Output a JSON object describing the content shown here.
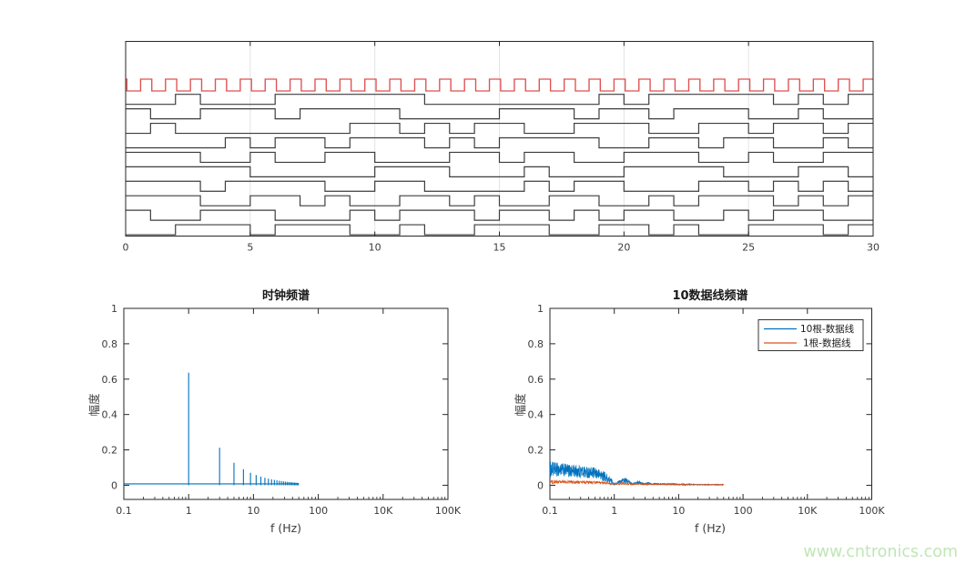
{
  "figure": {
    "background": "#ffffff",
    "watermark": {
      "text": "www.cntronics.com",
      "color": "#bfe6b6"
    }
  },
  "chart_data": [
    {
      "type": "digital-waveform",
      "panel": "top",
      "title": "",
      "xlim": [
        0,
        30
      ],
      "x_ticks": [
        0,
        5,
        10,
        15,
        20,
        25,
        30
      ],
      "x_tick_labels": [
        "0",
        "5",
        "10",
        "15",
        "20",
        "25",
        "30"
      ],
      "grid": "vertical-at-major-ticks",
      "grid_color": "#e4e4e4",
      "axis_color": "#262626",
      "clock": {
        "name": "clock-signal",
        "color": "#e04f4f",
        "period": 1,
        "duty_high": 0.45,
        "rise_offset": 0.6,
        "fall_offset": 1.05,
        "initial_high_until": 0.05,
        "cycles": 30
      },
      "data_lines": {
        "color": "#3d3d3d",
        "count": 10,
        "bit_period": 1,
        "bits": [
          [
            0,
            0,
            1,
            0,
            0,
            0,
            1,
            1,
            1,
            1,
            1,
            1,
            0,
            0,
            0,
            0,
            0,
            0,
            0,
            1,
            0,
            1,
            1,
            1,
            1,
            1,
            0,
            1,
            0,
            1
          ],
          [
            1,
            0,
            0,
            1,
            1,
            1,
            0,
            1,
            1,
            1,
            1,
            0,
            0,
            0,
            0,
            1,
            1,
            1,
            0,
            1,
            1,
            0,
            1,
            1,
            1,
            0,
            0,
            1,
            0,
            0
          ],
          [
            0,
            1,
            0,
            0,
            0,
            0,
            0,
            0,
            0,
            1,
            1,
            0,
            1,
            0,
            1,
            1,
            0,
            0,
            1,
            1,
            1,
            0,
            0,
            1,
            1,
            0,
            1,
            1,
            0,
            1
          ],
          [
            0,
            0,
            0,
            0,
            1,
            0,
            1,
            1,
            0,
            1,
            1,
            1,
            0,
            1,
            0,
            1,
            1,
            1,
            1,
            0,
            0,
            1,
            1,
            0,
            1,
            1,
            0,
            0,
            1,
            0
          ],
          [
            1,
            1,
            1,
            0,
            0,
            1,
            0,
            0,
            1,
            1,
            0,
            0,
            0,
            1,
            1,
            0,
            1,
            1,
            0,
            0,
            1,
            1,
            1,
            0,
            0,
            1,
            0,
            0,
            1,
            1
          ],
          [
            1,
            1,
            1,
            1,
            1,
            0,
            0,
            0,
            0,
            0,
            1,
            1,
            1,
            0,
            0,
            0,
            1,
            0,
            0,
            0,
            1,
            1,
            1,
            1,
            0,
            0,
            0,
            1,
            1,
            0
          ],
          [
            1,
            1,
            1,
            0,
            1,
            1,
            1,
            1,
            0,
            0,
            1,
            1,
            0,
            0,
            0,
            0,
            1,
            0,
            1,
            1,
            0,
            0,
            0,
            1,
            1,
            0,
            1,
            0,
            1,
            0
          ],
          [
            1,
            1,
            1,
            0,
            0,
            1,
            1,
            0,
            1,
            0,
            0,
            1,
            1,
            0,
            1,
            0,
            0,
            1,
            1,
            0,
            0,
            1,
            0,
            1,
            1,
            1,
            0,
            1,
            0,
            1
          ],
          [
            1,
            0,
            0,
            1,
            1,
            1,
            0,
            0,
            0,
            1,
            0,
            1,
            1,
            1,
            0,
            1,
            1,
            0,
            1,
            0,
            1,
            1,
            0,
            0,
            1,
            0,
            1,
            1,
            0,
            0
          ],
          [
            0,
            0,
            1,
            1,
            1,
            0,
            1,
            1,
            1,
            0,
            0,
            1,
            0,
            0,
            1,
            1,
            1,
            0,
            0,
            1,
            1,
            0,
            1,
            0,
            0,
            1,
            1,
            1,
            0,
            1
          ]
        ]
      }
    },
    {
      "type": "stem",
      "panel": "bottom-left",
      "title": "时钟频谱",
      "xlabel": "f (Hz)",
      "ylabel": "幅度",
      "x_scale": "log",
      "x_tick_labels": [
        "0.1",
        "1",
        "10",
        "100",
        "10K",
        "100K"
      ],
      "y_ticks": [
        0,
        0.2,
        0.4,
        0.6,
        0.8,
        1
      ],
      "y_tick_labels": [
        "0",
        "0.2",
        "0.4",
        "0.6",
        "0.8",
        "1"
      ],
      "ylim": [
        -0.08,
        1
      ],
      "color": "#0072BD",
      "baseline_level": 0.008,
      "baseline_range_hz": [
        0.1,
        50
      ],
      "harmonics_hz_amplitude": [
        [
          1,
          0.6366
        ],
        [
          3,
          0.2122
        ],
        [
          5,
          0.1273
        ],
        [
          7,
          0.0909
        ],
        [
          9,
          0.0707
        ],
        [
          11,
          0.0579
        ],
        [
          13,
          0.049
        ],
        [
          15,
          0.0424
        ],
        [
          17,
          0.0374
        ],
        [
          19,
          0.0335
        ],
        [
          21,
          0.0303
        ],
        [
          23,
          0.0277
        ],
        [
          25,
          0.0255
        ],
        [
          27,
          0.0236
        ],
        [
          29,
          0.022
        ],
        [
          31,
          0.0205
        ],
        [
          33,
          0.0193
        ],
        [
          35,
          0.0182
        ],
        [
          37,
          0.0172
        ],
        [
          39,
          0.0163
        ],
        [
          41,
          0.0155
        ],
        [
          43,
          0.0148
        ],
        [
          45,
          0.0141
        ],
        [
          47,
          0.0135
        ],
        [
          49,
          0.013
        ]
      ]
    },
    {
      "type": "line",
      "panel": "bottom-right",
      "title": "10数据线频谱",
      "xlabel": "f (Hz)",
      "ylabel": "幅度",
      "x_scale": "log",
      "x_tick_labels": [
        "0.1",
        "1",
        "10",
        "100",
        "10K",
        "100K"
      ],
      "y_ticks": [
        0,
        0.2,
        0.4,
        0.6,
        0.8,
        1
      ],
      "y_tick_labels": [
        "0",
        "0.2",
        "0.4",
        "0.6",
        "0.8",
        "1"
      ],
      "ylim": [
        -0.08,
        1
      ],
      "legend": {
        "position": "top-right",
        "entries": [
          {
            "label": "10根-数据线",
            "color": "#0072BD"
          },
          {
            "label": "1根-数据线",
            "color": "#D95319"
          }
        ]
      },
      "series": [
        {
          "name": "10根-数据线",
          "color": "#0072BD",
          "f_range_hz": [
            0.1,
            50
          ],
          "noise_band_f_lo_hi": [
            [
              0.1,
              0.045,
              0.135
            ],
            [
              0.15,
              0.05,
              0.125
            ],
            [
              0.2,
              0.045,
              0.12
            ],
            [
              0.3,
              0.04,
              0.115
            ],
            [
              0.4,
              0.04,
              0.105
            ],
            [
              0.5,
              0.035,
              0.1
            ],
            [
              0.6,
              0.03,
              0.09
            ],
            [
              0.7,
              0.02,
              0.08
            ],
            [
              0.8,
              0.012,
              0.06
            ],
            [
              0.9,
              0.004,
              0.04
            ],
            [
              1.0,
              0.001,
              0.012
            ],
            [
              1.1,
              0.004,
              0.02
            ],
            [
              1.3,
              0.012,
              0.038
            ],
            [
              1.5,
              0.012,
              0.042
            ],
            [
              1.7,
              0.008,
              0.03
            ],
            [
              1.9,
              0.002,
              0.012
            ],
            [
              2.1,
              0.004,
              0.018
            ],
            [
              2.4,
              0.008,
              0.028
            ],
            [
              2.7,
              0.004,
              0.018
            ],
            [
              3.0,
              0.002,
              0.01
            ],
            [
              3.4,
              0.005,
              0.02
            ],
            [
              3.8,
              0.003,
              0.012
            ],
            [
              4.4,
              0.004,
              0.016
            ],
            [
              5.0,
              0.002,
              0.01
            ],
            [
              6.0,
              0.003,
              0.013
            ],
            [
              7.0,
              0.002,
              0.01
            ],
            [
              8.0,
              0.002,
              0.011
            ],
            [
              10,
              0.0015,
              0.009
            ],
            [
              13,
              0.001,
              0.008
            ],
            [
              17,
              0.001,
              0.007
            ],
            [
              25,
              0.001,
              0.006
            ],
            [
              35,
              0.0008,
              0.005
            ],
            [
              50,
              0.0008,
              0.005
            ]
          ]
        },
        {
          "name": "1根-数据线",
          "color": "#D95319",
          "f_range_hz": [
            0.1,
            50
          ],
          "noise_band_f_lo_hi": [
            [
              0.1,
              0.008,
              0.03
            ],
            [
              0.2,
              0.008,
              0.028
            ],
            [
              0.4,
              0.007,
              0.025
            ],
            [
              0.7,
              0.005,
              0.02
            ],
            [
              1.0,
              0.003,
              0.012
            ],
            [
              1.3,
              0.004,
              0.016
            ],
            [
              1.7,
              0.003,
              0.013
            ],
            [
              2.2,
              0.003,
              0.011
            ],
            [
              3,
              0.0025,
              0.01
            ],
            [
              5,
              0.002,
              0.008
            ],
            [
              8,
              0.002,
              0.007
            ],
            [
              15,
              0.0015,
              0.006
            ],
            [
              30,
              0.0015,
              0.006
            ],
            [
              50,
              0.0015,
              0.006
            ]
          ]
        }
      ]
    }
  ]
}
